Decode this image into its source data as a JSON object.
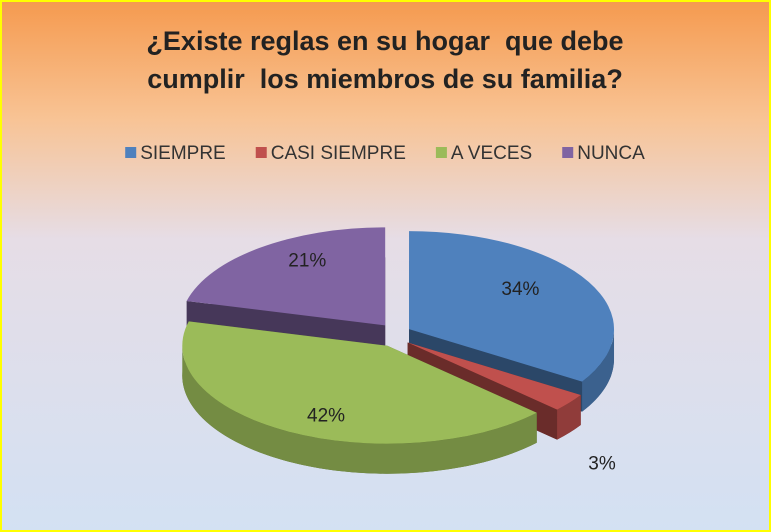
{
  "chart_data": {
    "type": "pie3d",
    "title": [
      "¿Existe reglas en su hogar  que debe",
      "cumplir  los miembros de su familia?"
    ],
    "categories": [
      "SIEMPRE",
      "CASI SIEMPRE",
      "A VECES",
      "NUNCA"
    ],
    "values": [
      34,
      3,
      42,
      21
    ],
    "value_labels": [
      "34%",
      "3%",
      "42%",
      "21%"
    ],
    "colors": [
      "#4f81bd",
      "#c0504d",
      "#9bbb59",
      "#8064a2"
    ],
    "legend": "top"
  }
}
